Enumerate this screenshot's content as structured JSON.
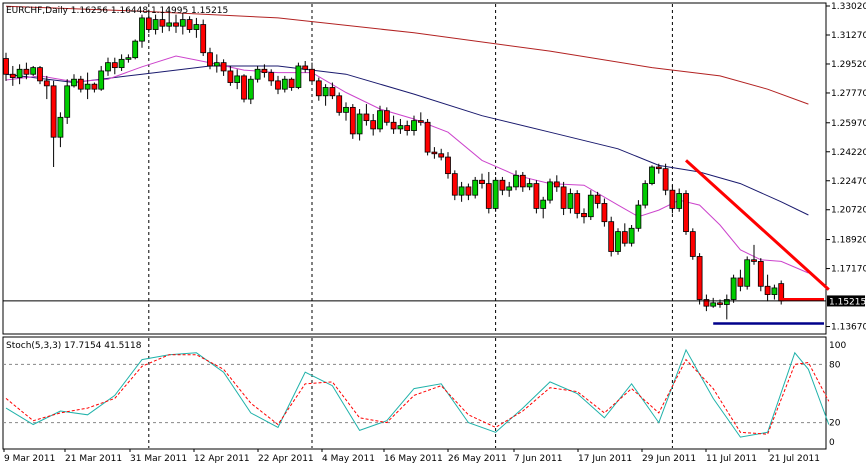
{
  "chart_data": {
    "type": "candlestick",
    "symbol_line": "EURCHF,Daily  1.16256 1.16448 1.14995 1.15215",
    "current_price": 1.15215,
    "current_price_label": "1.15215",
    "y_ticks": [
      "1.33020",
      "1.31270",
      "1.29520",
      "1.27770",
      "1.25970",
      "1.24220",
      "1.22470",
      "1.20720",
      "1.18920",
      "1.17170",
      "1.13670"
    ],
    "x_ticks": [
      "9 Mar 2011",
      "21 Mar 2011",
      "31 Mar 2011",
      "12 Apr 2011",
      "22 Apr 2011",
      "4 May 2011",
      "16 May 2011",
      "26 May 2011",
      "7 Jun 2011",
      "17 Jun 2011",
      "29 Jun 2011",
      "11 Jul 2011",
      "21 Jul 2011"
    ],
    "candles": [
      {
        "o": 1.2985,
        "h": 1.302,
        "l": 1.285,
        "c": 1.289
      },
      {
        "o": 1.289,
        "h": 1.294,
        "l": 1.282,
        "c": 1.287
      },
      {
        "o": 1.287,
        "h": 1.295,
        "l": 1.283,
        "c": 1.292
      },
      {
        "o": 1.292,
        "h": 1.296,
        "l": 1.286,
        "c": 1.289
      },
      {
        "o": 1.289,
        "h": 1.294,
        "l": 1.288,
        "c": 1.293
      },
      {
        "o": 1.293,
        "h": 1.294,
        "l": 1.283,
        "c": 1.285
      },
      {
        "o": 1.285,
        "h": 1.288,
        "l": 1.274,
        "c": 1.282
      },
      {
        "o": 1.282,
        "h": 1.285,
        "l": 1.233,
        "c": 1.251
      },
      {
        "o": 1.251,
        "h": 1.266,
        "l": 1.245,
        "c": 1.263
      },
      {
        "o": 1.263,
        "h": 1.286,
        "l": 1.259,
        "c": 1.282
      },
      {
        "o": 1.282,
        "h": 1.289,
        "l": 1.281,
        "c": 1.286
      },
      {
        "o": 1.286,
        "h": 1.288,
        "l": 1.278,
        "c": 1.28
      },
      {
        "o": 1.28,
        "h": 1.29,
        "l": 1.274,
        "c": 1.283
      },
      {
        "o": 1.283,
        "h": 1.284,
        "l": 1.278,
        "c": 1.28
      },
      {
        "o": 1.28,
        "h": 1.294,
        "l": 1.279,
        "c": 1.291
      },
      {
        "o": 1.291,
        "h": 1.299,
        "l": 1.288,
        "c": 1.296
      },
      {
        "o": 1.296,
        "h": 1.299,
        "l": 1.289,
        "c": 1.293
      },
      {
        "o": 1.293,
        "h": 1.301,
        "l": 1.291,
        "c": 1.298
      },
      {
        "o": 1.298,
        "h": 1.301,
        "l": 1.296,
        "c": 1.299
      },
      {
        "o": 1.299,
        "h": 1.31,
        "l": 1.298,
        "c": 1.309
      },
      {
        "o": 1.309,
        "h": 1.325,
        "l": 1.305,
        "c": 1.323
      },
      {
        "o": 1.323,
        "h": 1.328,
        "l": 1.314,
        "c": 1.316
      },
      {
        "o": 1.316,
        "h": 1.325,
        "l": 1.313,
        "c": 1.322
      },
      {
        "o": 1.322,
        "h": 1.326,
        "l": 1.314,
        "c": 1.318
      },
      {
        "o": 1.318,
        "h": 1.33,
        "l": 1.315,
        "c": 1.32
      },
      {
        "o": 1.32,
        "h": 1.325,
        "l": 1.314,
        "c": 1.318
      },
      {
        "o": 1.318,
        "h": 1.326,
        "l": 1.313,
        "c": 1.322
      },
      {
        "o": 1.322,
        "h": 1.324,
        "l": 1.314,
        "c": 1.316
      },
      {
        "o": 1.316,
        "h": 1.323,
        "l": 1.311,
        "c": 1.319
      },
      {
        "o": 1.319,
        "h": 1.322,
        "l": 1.3,
        "c": 1.302
      },
      {
        "o": 1.302,
        "h": 1.305,
        "l": 1.292,
        "c": 1.294
      },
      {
        "o": 1.294,
        "h": 1.301,
        "l": 1.29,
        "c": 1.296
      },
      {
        "o": 1.296,
        "h": 1.298,
        "l": 1.288,
        "c": 1.291
      },
      {
        "o": 1.291,
        "h": 1.294,
        "l": 1.282,
        "c": 1.284
      },
      {
        "o": 1.284,
        "h": 1.292,
        "l": 1.28,
        "c": 1.288
      },
      {
        "o": 1.288,
        "h": 1.289,
        "l": 1.272,
        "c": 1.274
      },
      {
        "o": 1.274,
        "h": 1.288,
        "l": 1.271,
        "c": 1.286
      },
      {
        "o": 1.286,
        "h": 1.294,
        "l": 1.284,
        "c": 1.292
      },
      {
        "o": 1.292,
        "h": 1.295,
        "l": 1.287,
        "c": 1.29
      },
      {
        "o": 1.29,
        "h": 1.292,
        "l": 1.282,
        "c": 1.285
      },
      {
        "o": 1.285,
        "h": 1.288,
        "l": 1.277,
        "c": 1.28
      },
      {
        "o": 1.28,
        "h": 1.288,
        "l": 1.278,
        "c": 1.286
      },
      {
        "o": 1.286,
        "h": 1.287,
        "l": 1.279,
        "c": 1.281
      },
      {
        "o": 1.281,
        "h": 1.296,
        "l": 1.28,
        "c": 1.294
      },
      {
        "o": 1.294,
        "h": 1.297,
        "l": 1.29,
        "c": 1.292
      },
      {
        "o": 1.292,
        "h": 1.296,
        "l": 1.283,
        "c": 1.285
      },
      {
        "o": 1.285,
        "h": 1.287,
        "l": 1.273,
        "c": 1.276
      },
      {
        "o": 1.276,
        "h": 1.283,
        "l": 1.27,
        "c": 1.281
      },
      {
        "o": 1.281,
        "h": 1.284,
        "l": 1.274,
        "c": 1.276
      },
      {
        "o": 1.276,
        "h": 1.278,
        "l": 1.264,
        "c": 1.266
      },
      {
        "o": 1.266,
        "h": 1.272,
        "l": 1.261,
        "c": 1.269
      },
      {
        "o": 1.269,
        "h": 1.271,
        "l": 1.25,
        "c": 1.253
      },
      {
        "o": 1.253,
        "h": 1.268,
        "l": 1.249,
        "c": 1.265
      },
      {
        "o": 1.265,
        "h": 1.271,
        "l": 1.258,
        "c": 1.261
      },
      {
        "o": 1.261,
        "h": 1.265,
        "l": 1.252,
        "c": 1.256
      },
      {
        "o": 1.256,
        "h": 1.27,
        "l": 1.254,
        "c": 1.267
      },
      {
        "o": 1.267,
        "h": 1.269,
        "l": 1.258,
        "c": 1.26
      },
      {
        "o": 1.26,
        "h": 1.264,
        "l": 1.253,
        "c": 1.256
      },
      {
        "o": 1.256,
        "h": 1.262,
        "l": 1.253,
        "c": 1.258
      },
      {
        "o": 1.258,
        "h": 1.261,
        "l": 1.252,
        "c": 1.255
      },
      {
        "o": 1.255,
        "h": 1.264,
        "l": 1.252,
        "c": 1.261
      },
      {
        "o": 1.261,
        "h": 1.266,
        "l": 1.258,
        "c": 1.26
      },
      {
        "o": 1.26,
        "h": 1.262,
        "l": 1.24,
        "c": 1.242
      },
      {
        "o": 1.242,
        "h": 1.245,
        "l": 1.238,
        "c": 1.241
      },
      {
        "o": 1.241,
        "h": 1.244,
        "l": 1.237,
        "c": 1.239
      },
      {
        "o": 1.239,
        "h": 1.242,
        "l": 1.226,
        "c": 1.229
      },
      {
        "o": 1.229,
        "h": 1.231,
        "l": 1.213,
        "c": 1.216
      },
      {
        "o": 1.216,
        "h": 1.224,
        "l": 1.212,
        "c": 1.221
      },
      {
        "o": 1.221,
        "h": 1.223,
        "l": 1.213,
        "c": 1.216
      },
      {
        "o": 1.216,
        "h": 1.227,
        "l": 1.214,
        "c": 1.225
      },
      {
        "o": 1.225,
        "h": 1.229,
        "l": 1.22,
        "c": 1.223
      },
      {
        "o": 1.223,
        "h": 1.23,
        "l": 1.205,
        "c": 1.208
      },
      {
        "o": 1.208,
        "h": 1.227,
        "l": 1.206,
        "c": 1.225
      },
      {
        "o": 1.225,
        "h": 1.227,
        "l": 1.216,
        "c": 1.219
      },
      {
        "o": 1.219,
        "h": 1.224,
        "l": 1.215,
        "c": 1.221
      },
      {
        "o": 1.221,
        "h": 1.231,
        "l": 1.219,
        "c": 1.228
      },
      {
        "o": 1.228,
        "h": 1.23,
        "l": 1.218,
        "c": 1.221
      },
      {
        "o": 1.221,
        "h": 1.226,
        "l": 1.219,
        "c": 1.223
      },
      {
        "o": 1.223,
        "h": 1.225,
        "l": 1.205,
        "c": 1.208
      },
      {
        "o": 1.208,
        "h": 1.215,
        "l": 1.202,
        "c": 1.213
      },
      {
        "o": 1.213,
        "h": 1.226,
        "l": 1.211,
        "c": 1.224
      },
      {
        "o": 1.224,
        "h": 1.228,
        "l": 1.218,
        "c": 1.221
      },
      {
        "o": 1.221,
        "h": 1.224,
        "l": 1.204,
        "c": 1.208
      },
      {
        "o": 1.208,
        "h": 1.22,
        "l": 1.205,
        "c": 1.217
      },
      {
        "o": 1.217,
        "h": 1.219,
        "l": 1.202,
        "c": 1.205
      },
      {
        "o": 1.205,
        "h": 1.208,
        "l": 1.199,
        "c": 1.203
      },
      {
        "o": 1.203,
        "h": 1.219,
        "l": 1.201,
        "c": 1.216
      },
      {
        "o": 1.216,
        "h": 1.218,
        "l": 1.208,
        "c": 1.211
      },
      {
        "o": 1.211,
        "h": 1.214,
        "l": 1.197,
        "c": 1.2
      },
      {
        "o": 1.2,
        "h": 1.203,
        "l": 1.179,
        "c": 1.182
      },
      {
        "o": 1.182,
        "h": 1.196,
        "l": 1.18,
        "c": 1.194
      },
      {
        "o": 1.194,
        "h": 1.199,
        "l": 1.185,
        "c": 1.187
      },
      {
        "o": 1.187,
        "h": 1.198,
        "l": 1.185,
        "c": 1.196
      },
      {
        "o": 1.196,
        "h": 1.213,
        "l": 1.194,
        "c": 1.21
      },
      {
        "o": 1.21,
        "h": 1.225,
        "l": 1.208,
        "c": 1.223
      },
      {
        "o": 1.223,
        "h": 1.234,
        "l": 1.222,
        "c": 1.233
      },
      {
        "o": 1.233,
        "h": 1.235,
        "l": 1.229,
        "c": 1.232
      },
      {
        "o": 1.232,
        "h": 1.235,
        "l": 1.216,
        "c": 1.219
      },
      {
        "o": 1.219,
        "h": 1.222,
        "l": 1.205,
        "c": 1.208
      },
      {
        "o": 1.208,
        "h": 1.22,
        "l": 1.206,
        "c": 1.217
      },
      {
        "o": 1.217,
        "h": 1.219,
        "l": 1.192,
        "c": 1.194
      },
      {
        "o": 1.194,
        "h": 1.196,
        "l": 1.177,
        "c": 1.179
      },
      {
        "o": 1.179,
        "h": 1.181,
        "l": 1.15,
        "c": 1.153
      },
      {
        "o": 1.153,
        "h": 1.156,
        "l": 1.146,
        "c": 1.149
      },
      {
        "o": 1.149,
        "h": 1.154,
        "l": 1.148,
        "c": 1.151
      },
      {
        "o": 1.151,
        "h": 1.153,
        "l": 1.148,
        "c": 1.15
      },
      {
        "o": 1.15,
        "h": 1.156,
        "l": 1.141,
        "c": 1.153
      },
      {
        "o": 1.153,
        "h": 1.168,
        "l": 1.151,
        "c": 1.166
      },
      {
        "o": 1.166,
        "h": 1.171,
        "l": 1.158,
        "c": 1.161
      },
      {
        "o": 1.161,
        "h": 1.179,
        "l": 1.159,
        "c": 1.177
      },
      {
        "o": 1.177,
        "h": 1.186,
        "l": 1.174,
        "c": 1.176
      },
      {
        "o": 1.176,
        "h": 1.178,
        "l": 1.158,
        "c": 1.161
      },
      {
        "o": 1.161,
        "h": 1.168,
        "l": 1.152,
        "c": 1.156
      },
      {
        "o": 1.156,
        "h": 1.162,
        "l": 1.153,
        "c": 1.16
      },
      {
        "o": 1.1626,
        "h": 1.1645,
        "l": 1.15,
        "c": 1.1522
      }
    ],
    "ma_fast_color": "#cc44cc",
    "ma_mid_color": "#1a1a6e",
    "ma_slow_color": "#b22222",
    "ma_mid": [
      [
        0,
        1.289
      ],
      [
        10,
        1.284
      ],
      [
        20,
        1.289
      ],
      [
        30,
        1.294
      ],
      [
        40,
        1.294
      ],
      [
        50,
        1.289
      ],
      [
        60,
        1.277
      ],
      [
        70,
        1.264
      ],
      [
        80,
        1.254
      ],
      [
        90,
        1.244
      ],
      [
        96,
        1.234
      ],
      [
        102,
        1.23
      ],
      [
        108,
        1.223
      ],
      [
        114,
        1.212
      ],
      [
        118,
        1.204
      ]
    ],
    "ma_slow": [
      [
        0,
        1.33
      ],
      [
        20,
        1.327
      ],
      [
        40,
        1.323
      ],
      [
        60,
        1.314
      ],
      [
        80,
        1.303
      ],
      [
        95,
        1.293
      ],
      [
        105,
        1.288
      ],
      [
        112,
        1.28
      ],
      [
        118,
        1.271
      ]
    ],
    "ma_fast": [
      [
        0,
        1.2855
      ],
      [
        5,
        1.288
      ],
      [
        10,
        1.2845
      ],
      [
        15,
        1.286
      ],
      [
        20,
        1.2935
      ],
      [
        25,
        1.3
      ],
      [
        30,
        1.296
      ],
      [
        35,
        1.2915
      ],
      [
        40,
        1.29
      ],
      [
        45,
        1.29
      ],
      [
        50,
        1.278
      ],
      [
        55,
        1.268
      ],
      [
        60,
        1.262
      ],
      [
        65,
        1.254
      ],
      [
        70,
        1.237
      ],
      [
        75,
        1.228
      ],
      [
        80,
        1.223
      ],
      [
        85,
        1.222
      ],
      [
        90,
        1.21
      ],
      [
        93,
        1.203
      ],
      [
        96,
        1.207
      ],
      [
        99,
        1.213
      ],
      [
        102,
        1.21
      ],
      [
        105,
        1.198
      ],
      [
        108,
        1.183
      ],
      [
        111,
        1.177
      ],
      [
        114,
        1.176
      ],
      [
        118,
        1.169
      ]
    ],
    "vertical_separators": [
      21,
      45,
      72,
      98
    ],
    "annotations": {
      "trendline_color": "#ff0000",
      "trendline_from": [
        100,
        1.237
      ],
      "trendline_to": [
        121,
        1.159
      ],
      "resistance_y": 1.153,
      "resistance_from_idx": 114,
      "support_y": 1.1385,
      "support_from_idx": 104,
      "support_color": "#00008b"
    },
    "stoch_label": "Stoch(5,3,3) 17.7154 41.5118",
    "stoch_ticks": [
      "100",
      "80",
      "20",
      "0"
    ],
    "stoch_levels": [
      80,
      20
    ],
    "stoch_main_color": "#20b2aa",
    "stoch_signal_color": "#ff0000",
    "stoch_main": [
      [
        0,
        35
      ],
      [
        4,
        18
      ],
      [
        8,
        32
      ],
      [
        12,
        28
      ],
      [
        16,
        48
      ],
      [
        20,
        85
      ],
      [
        24,
        90
      ],
      [
        28,
        92
      ],
      [
        32,
        72
      ],
      [
        36,
        30
      ],
      [
        40,
        15
      ],
      [
        44,
        72
      ],
      [
        48,
        58
      ],
      [
        52,
        12
      ],
      [
        56,
        22
      ],
      [
        60,
        55
      ],
      [
        64,
        60
      ],
      [
        68,
        20
      ],
      [
        72,
        10
      ],
      [
        76,
        35
      ],
      [
        80,
        62
      ],
      [
        84,
        50
      ],
      [
        88,
        25
      ],
      [
        92,
        60
      ],
      [
        96,
        20
      ],
      [
        100,
        95
      ],
      [
        104,
        45
      ],
      [
        108,
        5
      ],
      [
        112,
        10
      ],
      [
        116,
        92
      ],
      [
        118,
        75
      ],
      [
        121,
        18
      ]
    ],
    "stoch_signal": [
      [
        0,
        45
      ],
      [
        4,
        22
      ],
      [
        8,
        30
      ],
      [
        12,
        35
      ],
      [
        16,
        45
      ],
      [
        20,
        78
      ],
      [
        24,
        90
      ],
      [
        28,
        90
      ],
      [
        32,
        75
      ],
      [
        36,
        40
      ],
      [
        40,
        18
      ],
      [
        44,
        60
      ],
      [
        48,
        62
      ],
      [
        52,
        25
      ],
      [
        56,
        20
      ],
      [
        60,
        48
      ],
      [
        64,
        58
      ],
      [
        68,
        28
      ],
      [
        72,
        15
      ],
      [
        76,
        32
      ],
      [
        80,
        56
      ],
      [
        84,
        52
      ],
      [
        88,
        30
      ],
      [
        92,
        55
      ],
      [
        96,
        30
      ],
      [
        100,
        85
      ],
      [
        104,
        55
      ],
      [
        108,
        10
      ],
      [
        112,
        8
      ],
      [
        116,
        80
      ],
      [
        118,
        82
      ],
      [
        121,
        42
      ]
    ]
  }
}
